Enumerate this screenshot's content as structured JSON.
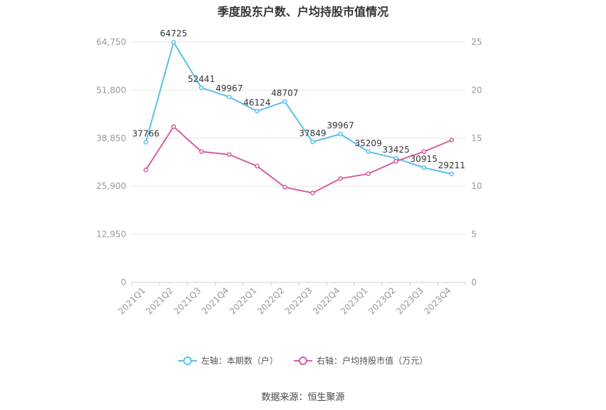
{
  "title": "季度股东户数、户均持股市值情况",
  "source": "数据来源：恒生聚源",
  "legend": {
    "left": "左轴：本期数（户）",
    "right": "右轴：户均持股市值（万元）"
  },
  "colors": {
    "left": "#5bc0eb",
    "right": "#d4609f",
    "grid": "#e6e6e6",
    "axis_text": "#999999"
  },
  "chart_data": {
    "type": "line",
    "categories": [
      "2021Q1",
      "2021Q2",
      "2021Q3",
      "2021Q4",
      "2022Q1",
      "2022Q2",
      "2022Q3",
      "2022Q4",
      "2023Q1",
      "2023Q2",
      "2023Q3",
      "2023Q4"
    ],
    "series": [
      {
        "name": "本期数（户）",
        "axis": "left",
        "values": [
          37766,
          64725,
          52441,
          49967,
          46124,
          48707,
          37849,
          39967,
          35209,
          33425,
          30915,
          29211
        ]
      },
      {
        "name": "户均持股市值（万元）",
        "axis": "right",
        "values": [
          11.7,
          16.2,
          13.6,
          13.3,
          12.1,
          9.9,
          9.3,
          10.8,
          11.3,
          12.6,
          13.6,
          14.8
        ]
      }
    ],
    "left_axis": {
      "ticks": [
        "0",
        "12,950",
        "25,900",
        "38,850",
        "51,800",
        "64,750"
      ],
      "ylim": [
        0,
        64750
      ]
    },
    "right_axis": {
      "ticks": [
        "0",
        "5",
        "10",
        "15",
        "20",
        "25"
      ],
      "ylim": [
        0,
        25
      ]
    },
    "data_labels": "left series only",
    "grid": true,
    "legend_position": "bottom"
  }
}
